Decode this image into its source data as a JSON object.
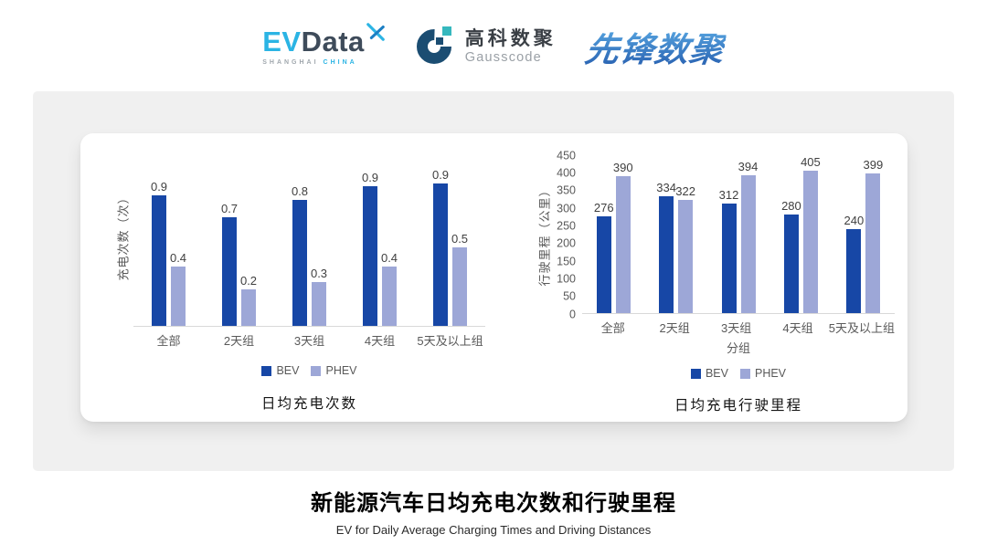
{
  "header": {
    "evdata": {
      "ev": "EV",
      "data": "Data",
      "sub_left": "SHANGHAI",
      "sub_right": "CHINA"
    },
    "gausscode": {
      "cn": "高科数聚",
      "en": "Gausscode"
    },
    "xianfeng": {
      "text": "先锋数聚"
    }
  },
  "chart_data": [
    {
      "type": "bar",
      "title": "日均充电次数",
      "ylabel": "充电次数（次）",
      "xlabel": "",
      "categories": [
        "全部",
        "2天组",
        "3天组",
        "4天组",
        "5天及以上组"
      ],
      "series": [
        {
          "name": "BEV",
          "color": "#1747a6",
          "values": [
            0.9,
            0.7,
            0.8,
            0.9,
            0.9
          ],
          "render_values": [
            0.86,
            0.72,
            0.83,
            0.92,
            0.94
          ]
        },
        {
          "name": "PHEV",
          "color": "#9da7d7",
          "values": [
            0.4,
            0.2,
            0.3,
            0.4,
            0.5
          ],
          "render_values": [
            0.39,
            0.24,
            0.29,
            0.39,
            0.52
          ]
        }
      ],
      "ylim": [
        0,
        1.2
      ],
      "y_ticks": [],
      "grid": false,
      "legend_position": "bottom"
    },
    {
      "type": "bar",
      "title": "日均充电行驶里程",
      "ylabel": "行驶里程（公里）",
      "xlabel": "分组",
      "categories": [
        "全部",
        "2天组",
        "3天组",
        "4天组",
        "5天及以上组"
      ],
      "series": [
        {
          "name": "BEV",
          "color": "#1747a6",
          "values": [
            276,
            334,
            312,
            280,
            240
          ]
        },
        {
          "name": "PHEV",
          "color": "#9da7d7",
          "values": [
            390,
            322,
            394,
            405,
            399
          ]
        }
      ],
      "ylim": [
        0,
        450
      ],
      "y_ticks": [
        0,
        50,
        100,
        150,
        200,
        250,
        300,
        350,
        400,
        450
      ],
      "grid": false,
      "legend_position": "bottom"
    }
  ],
  "footer": {
    "title": "新能源汽车日均充电次数和行驶里程",
    "subtitle": "EV for Daily Average Charging Times and Driving Distances"
  },
  "colors": {
    "bev": "#1747a6",
    "phev": "#9da7d7",
    "panel_bg": "#f0f0f0",
    "card_bg": "#ffffff",
    "baseline": "#d9d9d9",
    "tick_label": "#595959",
    "value_label": "#3f3f3f",
    "evdata_blue": "#2bb4e4",
    "evdata_dark": "#3e4b5a",
    "gausscode_navy": "#1b4d72",
    "gausscode_teal": "#35b8be",
    "xianfeng_top": "#58a7e2",
    "xianfeng_bottom": "#2a63b2"
  }
}
